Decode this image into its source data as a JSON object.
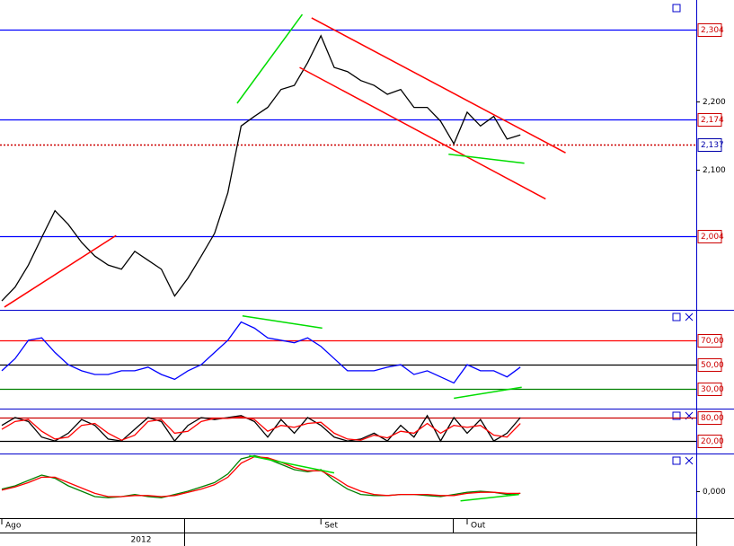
{
  "chart_data": [
    {
      "type": "line",
      "categories": [
        "Ago",
        null,
        null,
        null,
        null,
        null,
        null,
        null,
        null,
        null,
        null,
        null,
        null,
        null,
        null,
        null,
        null,
        null,
        null,
        null,
        null,
        null,
        null,
        null,
        "Set",
        null,
        null,
        null,
        null,
        null,
        null,
        null,
        null,
        null,
        null,
        "Out",
        null,
        null,
        null,
        null
      ],
      "year": "2012",
      "series": [
        {
          "color": "#000000",
          "values": [
            1910,
            1930,
            1962,
            2002,
            2041,
            2021,
            1995,
            1975,
            1962,
            1956,
            1982,
            1969,
            1956,
            1917,
            1943,
            1975,
            2008,
            2067,
            2164,
            2178,
            2191,
            2217,
            2223,
            2256,
            2295,
            2249,
            2243,
            2230,
            2223,
            2210,
            2217,
            2191,
            2191,
            2171,
            2138,
            2184,
            2164,
            2178,
            2145,
            2151
          ]
        }
      ],
      "ylim": [
        1897,
        2347
      ],
      "yticks": [
        {
          "value": 2100,
          "label": "2,100"
        },
        {
          "value": 2200,
          "label": "2,200"
        }
      ],
      "hlines": [
        {
          "value": 2304,
          "label": "2,304",
          "color": "#0000ff",
          "label_color": "#cc0000",
          "dashed": false
        },
        {
          "value": 2174,
          "label": "2,174",
          "color": "#0000ff",
          "label_color": "#cc0000",
          "dashed": false
        },
        {
          "value": 2137,
          "label": "2,137",
          "color": "#cc0000",
          "label_color": "#0000aa",
          "dashed": true
        },
        {
          "value": 2004,
          "label": "2,004",
          "color": "#0000ff",
          "label_color": "#cc0000",
          "dashed": false
        }
      ],
      "trendlines": [
        {
          "color": "#ff0000",
          "points": [
            [
              23.3,
              2321
            ],
            [
              42.4,
              2125
            ]
          ]
        },
        {
          "color": "#ff0000",
          "points": [
            [
              22.4,
              2249
            ],
            [
              40.9,
              2058
            ]
          ]
        },
        {
          "color": "#ff0000",
          "points": [
            [
              0.2,
              1901
            ],
            [
              8.6,
              2005
            ]
          ]
        },
        {
          "color": "#00dd00",
          "points": [
            [
              17.7,
              2197
            ],
            [
              22.6,
              2326
            ]
          ]
        },
        {
          "color": "#00dd00",
          "points": [
            [
              33.6,
              2123
            ],
            [
              39.3,
              2110
            ]
          ]
        }
      ]
    },
    {
      "type": "line",
      "series": [
        {
          "color": "#0000ff",
          "values": [
            45,
            55,
            70,
            72,
            60,
            50,
            45,
            42,
            42,
            45,
            45,
            48,
            42,
            38,
            45,
            50,
            60,
            70,
            85,
            80,
            72,
            70,
            68,
            72,
            65,
            55,
            45,
            45,
            45,
            48,
            50,
            42,
            45,
            40,
            35,
            50,
            45,
            45,
            40,
            48
          ]
        }
      ],
      "ylim": [
        14,
        95
      ],
      "yticks": [],
      "hlines": [
        {
          "value": 70,
          "label": "70,00",
          "color": "#ff0000",
          "label_color": "#cc0000",
          "dashed": false
        },
        {
          "value": 50,
          "label": "50,00",
          "color": "#000000",
          "label_color": "#cc0000",
          "dashed": false
        },
        {
          "value": 30,
          "label": "30,00",
          "color": "#008000",
          "label_color": "#cc0000",
          "dashed": false
        }
      ],
      "trendlines": [
        {
          "color": "#00dd00",
          "points": [
            [
              18.1,
              90
            ],
            [
              24.1,
              80
            ]
          ]
        },
        {
          "color": "#00dd00",
          "points": [
            [
              34,
              22.5
            ],
            [
              39.1,
              31.5
            ]
          ]
        }
      ]
    },
    {
      "type": "line",
      "series": [
        {
          "color": "#000000",
          "values": [
            60,
            80,
            70,
            30,
            20,
            40,
            75,
            60,
            25,
            20,
            50,
            80,
            70,
            20,
            60,
            80,
            75,
            80,
            85,
            70,
            30,
            75,
            40,
            80,
            60,
            30,
            20,
            25,
            40,
            20,
            60,
            30,
            85,
            20,
            80,
            40,
            75,
            20,
            40,
            80
          ]
        },
        {
          "color": "#ff0000",
          "values": [
            50,
            70,
            75,
            45,
            25,
            30,
            60,
            65,
            40,
            22,
            35,
            70,
            75,
            40,
            45,
            70,
            78,
            78,
            82,
            75,
            45,
            60,
            55,
            65,
            68,
            40,
            25,
            22,
            35,
            28,
            45,
            40,
            65,
            40,
            60,
            55,
            60,
            35,
            30,
            65
          ]
        }
      ],
      "ylim": [
        -12,
        103
      ],
      "yticks": [],
      "hlines": [
        {
          "value": 80,
          "label": "80,00",
          "color": "#cc0000",
          "label_color": "#cc0000",
          "dashed": false
        },
        {
          "value": 20,
          "label": "20,00",
          "color": "#000000",
          "label_color": "#cc0000",
          "dashed": false
        }
      ],
      "trendlines": []
    },
    {
      "type": "line",
      "series": [
        {
          "color": "#008000",
          "values": [
            0.2,
            0.5,
            1.0,
            1.5,
            1.2,
            0.5,
            0,
            -0.5,
            -0.6,
            -0.5,
            -0.3,
            -0.5,
            -0.6,
            -0.3,
            0,
            0.4,
            0.8,
            1.6,
            3.0,
            3.3,
            3.0,
            2.5,
            2.0,
            1.8,
            2.0,
            1.0,
            0.2,
            -0.3,
            -0.4,
            -0.4,
            -0.3,
            -0.3,
            -0.4,
            -0.5,
            -0.3,
            -0.1,
            0,
            -0.1,
            -0.3,
            -0.2
          ]
        },
        {
          "color": "#ff0000",
          "values": [
            0.1,
            0.4,
            0.8,
            1.3,
            1.3,
            0.8,
            0.3,
            -0.2,
            -0.5,
            -0.5,
            -0.4,
            -0.4,
            -0.5,
            -0.4,
            -0.1,
            0.2,
            0.6,
            1.3,
            2.6,
            3.2,
            3.1,
            2.7,
            2.2,
            1.9,
            1.9,
            1.3,
            0.5,
            0,
            -0.3,
            -0.4,
            -0.3,
            -0.3,
            -0.3,
            -0.4,
            -0.4,
            -0.2,
            -0.1,
            -0.1,
            -0.2,
            -0.2
          ]
        }
      ],
      "ylim": [
        -2.5,
        3.5
      ],
      "yticks": [
        {
          "value": 0,
          "label": "0,000"
        }
      ],
      "hlines": [],
      "trendlines": [
        {
          "color": "#00dd00",
          "points": [
            [
              18.6,
              3.3
            ],
            [
              25,
              1.7
            ]
          ]
        },
        {
          "color": "#00dd00",
          "points": [
            [
              34.5,
              -0.9
            ],
            [
              38.9,
              -0.3
            ]
          ]
        }
      ]
    }
  ]
}
